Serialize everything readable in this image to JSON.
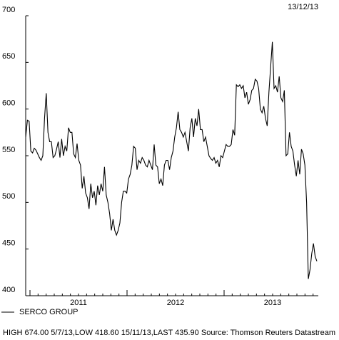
{
  "chart_data": {
    "type": "line",
    "date_label": "13/12/13",
    "series": [
      {
        "name": "SERCO GROUP",
        "color": "#000000",
        "values": [
          570,
          588,
          587,
          555,
          553,
          558,
          556,
          552,
          548,
          545,
          550,
          590,
          617,
          575,
          565,
          565,
          548,
          550,
          557,
          565,
          548,
          568,
          550,
          560,
          555,
          580,
          575,
          575,
          552,
          548,
          563,
          545,
          540,
          515,
          528,
          510,
          505,
          493,
          520,
          505,
          512,
          497,
          518,
          508,
          520,
          512,
          538,
          508,
          500,
          488,
          470,
          482,
          470,
          465,
          470,
          478,
          500,
          512,
          512,
          510,
          525,
          530,
          540,
          560,
          558,
          535,
          545,
          542,
          548,
          545,
          540,
          538,
          545,
          540,
          535,
          562,
          540,
          538,
          520,
          525,
          518,
          540,
          545,
          545,
          535,
          548,
          555,
          570,
          580,
          597,
          578,
          575,
          570,
          575,
          565,
          555,
          580,
          590,
          570,
          590,
          582,
          600,
          578,
          578,
          565,
          570,
          560,
          550,
          547,
          545,
          548,
          542,
          545,
          538,
          550,
          548,
          555,
          562,
          560,
          560,
          562,
          578,
          572,
          626,
          624,
          626,
          622,
          625,
          612,
          618,
          605,
          610,
          620,
          622,
          632,
          630,
          622,
          600,
          596,
          603,
          590,
          582,
          618,
          645,
          672,
          622,
          625,
          618,
          635,
          612,
          608,
          620,
          550,
          552,
          575,
          560,
          555,
          540,
          528,
          545,
          530,
          557,
          552,
          540,
          500,
          418,
          428,
          445,
          456,
          442,
          437
        ]
      }
    ],
    "xlabels": [
      "2011",
      "2012",
      "2013"
    ],
    "ylim": [
      400,
      700
    ],
    "yticks": [
      400,
      450,
      500,
      550,
      600,
      650,
      700
    ],
    "footer": "HIGH 674.00 5/7/13,LOW 418.60 15/11/13,LAST 435.90",
    "source": "Source: Thomson Reuters Datastream"
  }
}
